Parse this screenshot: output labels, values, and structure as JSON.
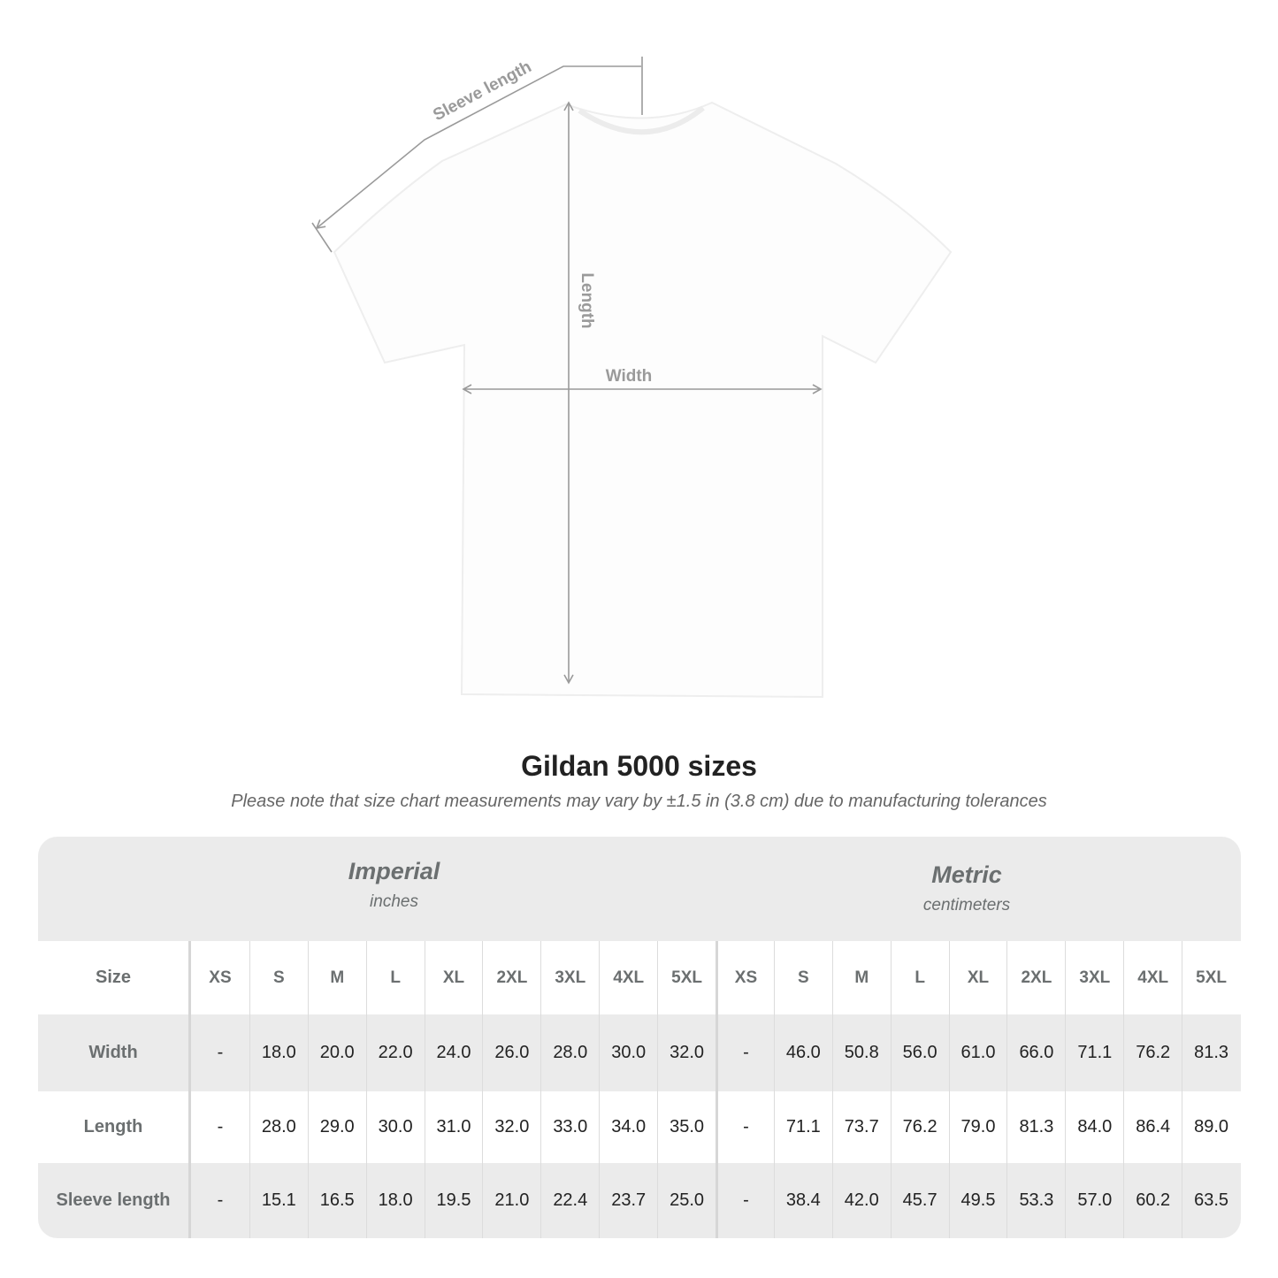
{
  "diagram": {
    "labels": {
      "sleeve": "Sleeve length",
      "length": "Length",
      "width": "Width"
    },
    "shirt_color": "#ffffff",
    "arrow_color": "#9a9a9a"
  },
  "title": "Gildan 5000 sizes",
  "note": "Please note that size chart measurements may vary by ±1.5 in (3.8 cm) due to manufacturing tolerances",
  "table": {
    "imperial": {
      "name": "Imperial",
      "unit": "inches"
    },
    "metric": {
      "name": "Metric",
      "unit": "centimeters"
    },
    "size_label": "Size",
    "sizes": [
      "XS",
      "S",
      "M",
      "L",
      "XL",
      "2XL",
      "3XL",
      "4XL",
      "5XL"
    ],
    "rows": [
      {
        "label": "Width",
        "imperial": [
          "-",
          "18.0",
          "20.0",
          "22.0",
          "24.0",
          "26.0",
          "28.0",
          "30.0",
          "32.0"
        ],
        "metric": [
          "-",
          "46.0",
          "50.8",
          "56.0",
          "61.0",
          "66.0",
          "71.1",
          "76.2",
          "81.3"
        ]
      },
      {
        "label": "Length",
        "imperial": [
          "-",
          "28.0",
          "29.0",
          "30.0",
          "31.0",
          "32.0",
          "33.0",
          "34.0",
          "35.0"
        ],
        "metric": [
          "-",
          "71.1",
          "73.7",
          "76.2",
          "79.0",
          "81.3",
          "84.0",
          "86.4",
          "89.0"
        ]
      },
      {
        "label": "Sleeve length",
        "imperial": [
          "-",
          "15.1",
          "16.5",
          "18.0",
          "19.5",
          "21.0",
          "22.4",
          "23.7",
          "25.0"
        ],
        "metric": [
          "-",
          "38.4",
          "42.0",
          "45.7",
          "49.5",
          "53.3",
          "57.0",
          "60.2",
          "63.5"
        ]
      }
    ]
  }
}
